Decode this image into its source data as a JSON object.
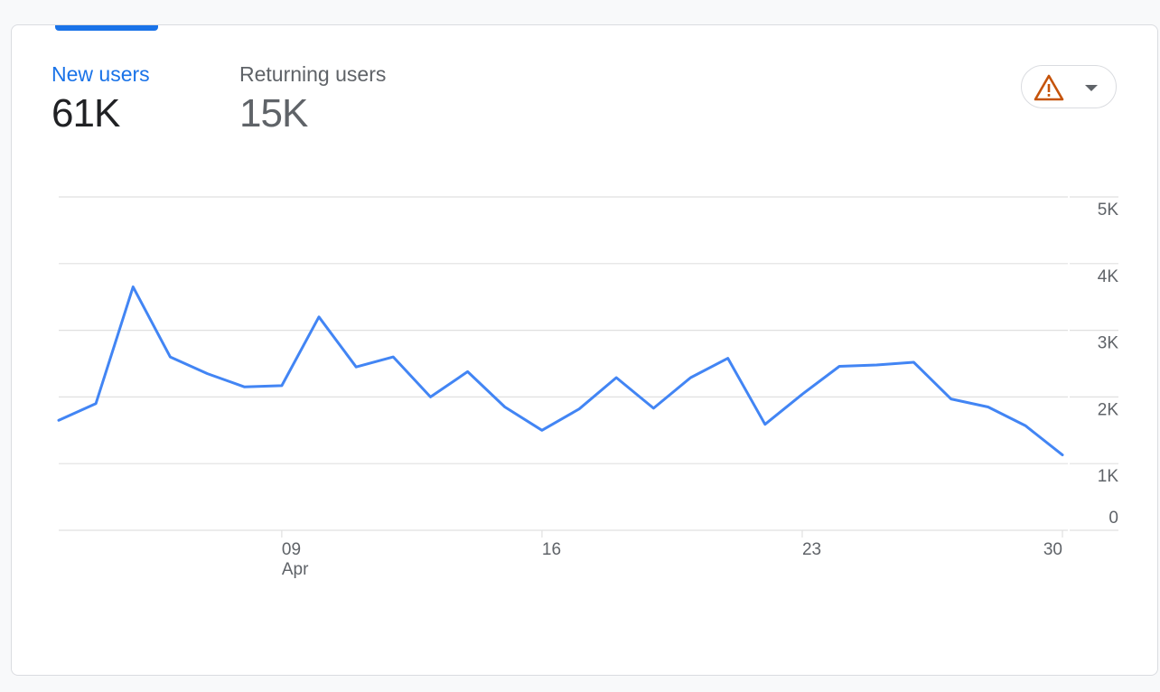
{
  "metrics": {
    "new_users": {
      "label": "New users",
      "value": "61K"
    },
    "returning_users": {
      "label": "Returning users",
      "value": "15K"
    }
  },
  "alert_button": {
    "icon": "warning-triangle-icon",
    "dropdown_icon": "caret-down-icon"
  },
  "colors": {
    "accent": "#1a73e8",
    "line": "#4285f4",
    "warning": "#c5530a",
    "grid": "#e0e0e0",
    "text_secondary": "#5f6368"
  },
  "chart_data": {
    "type": "line",
    "series": [
      {
        "values": [
          1650,
          1900,
          3650,
          2600,
          2350,
          2150,
          2170,
          3200,
          2450,
          2600,
          2000,
          2380,
          1850,
          1500,
          1820,
          2290,
          1830,
          2290,
          2580,
          1590,
          2040,
          2460,
          2480,
          2520,
          1970,
          1850,
          1570,
          1130
        ]
      }
    ],
    "x_tick_labels": [
      {
        "index": 6,
        "label": "09",
        "sublabel": "Apr"
      },
      {
        "index": 13,
        "label": "16",
        "sublabel": ""
      },
      {
        "index": 20,
        "label": "23",
        "sublabel": ""
      },
      {
        "index": 27,
        "label": "30",
        "sublabel": ""
      }
    ],
    "y_ticks": [
      {
        "value": 0,
        "label": "0"
      },
      {
        "value": 1000,
        "label": "1K"
      },
      {
        "value": 2000,
        "label": "2K"
      },
      {
        "value": 3000,
        "label": "3K"
      },
      {
        "value": 4000,
        "label": "4K"
      },
      {
        "value": 5000,
        "label": "5K"
      }
    ],
    "ylim": [
      0,
      5000
    ],
    "y_axis_position": "right",
    "grid": true
  }
}
